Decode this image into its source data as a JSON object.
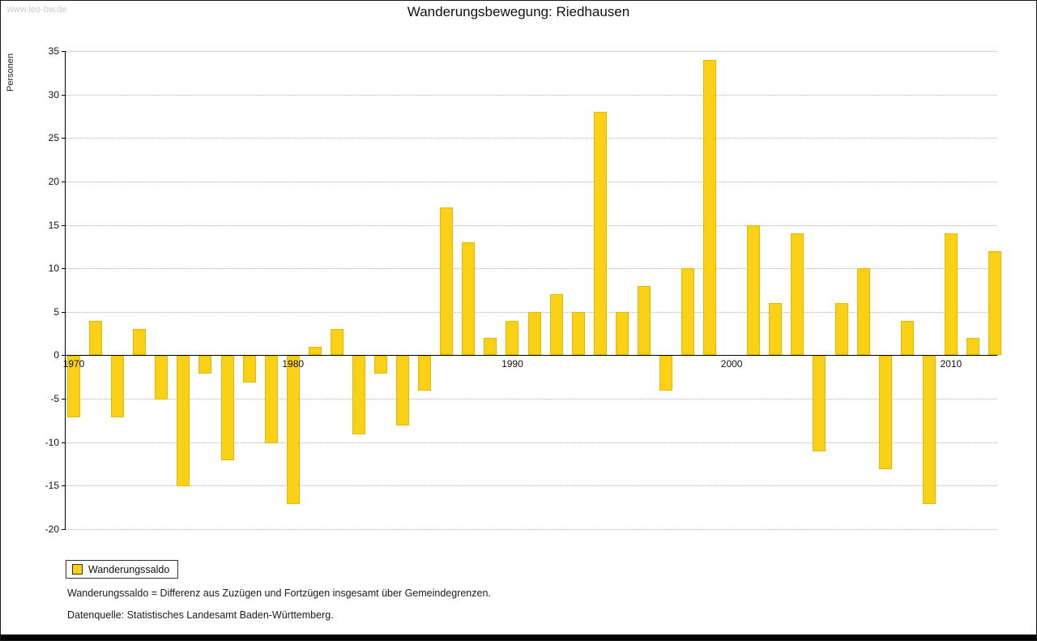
{
  "watermark": "www.leo-bw.de",
  "title": "Wanderungsbewegung: Riedhausen",
  "ylabel": "Personen",
  "legend": {
    "label": "Wanderungssaldo"
  },
  "footnotes": [
    "Wanderungssaldo = Differenz aus Zuzügen und Fortzügen insgesamt über Gemeindegrenzen.",
    "Datenquelle: Statistisches Landesamt Baden-Württemberg."
  ],
  "chart_data": {
    "type": "bar",
    "title": "Wanderungsbewegung: Riedhausen",
    "xlabel": "",
    "ylabel": "Personen",
    "series_name": "Wanderungssaldo",
    "x": [
      1970,
      1971,
      1972,
      1973,
      1974,
      1975,
      1976,
      1977,
      1978,
      1979,
      1980,
      1981,
      1982,
      1983,
      1984,
      1985,
      1986,
      1987,
      1988,
      1989,
      1990,
      1991,
      1992,
      1993,
      1994,
      1995,
      1996,
      1997,
      1998,
      1999,
      2000,
      2001,
      2002,
      2003,
      2004,
      2005,
      2006,
      2007,
      2008,
      2009,
      2010,
      2011,
      2012
    ],
    "values": [
      -7,
      4,
      -7,
      3,
      -5,
      -15,
      -2,
      -12,
      -3,
      -10,
      -17,
      1,
      3,
      -9,
      -2,
      -8,
      -4,
      17,
      13,
      2,
      4,
      5,
      7,
      5,
      28,
      5,
      8,
      -4,
      10,
      34,
      0,
      15,
      6,
      14,
      -11,
      6,
      10,
      -13,
      4,
      -17,
      14,
      2,
      12
    ],
    "ylim": [
      -20,
      35
    ],
    "ytick_step": 5,
    "xticks": [
      1970,
      1980,
      1990,
      2000,
      2010
    ],
    "bar_color": "#fbd116",
    "grid": "horizontal-dotted",
    "legend_position": "bottom-left"
  }
}
